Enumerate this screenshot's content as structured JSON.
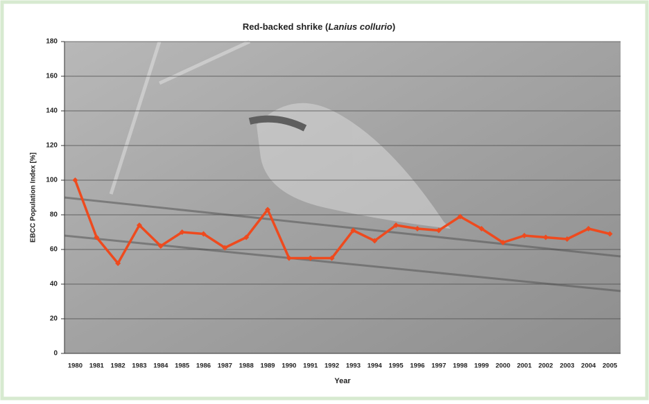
{
  "chart_data": {
    "type": "line",
    "title_parts": [
      "Red-backed shrike (",
      "Lanius collurio",
      ")"
    ],
    "x_label": "Year",
    "y_label": "EBCC Population Index [%]",
    "categories": [
      "1980",
      "1981",
      "1982",
      "1983",
      "1984",
      "1985",
      "1986",
      "1987",
      "1988",
      "1989",
      "1990",
      "1991",
      "1992",
      "1993",
      "1994",
      "1995",
      "1996",
      "1997",
      "1998",
      "1999",
      "2000",
      "2001",
      "2002",
      "2003",
      "2004",
      "2005"
    ],
    "series": [
      {
        "color": "#ee4a1e",
        "values": [
          100,
          67,
          52,
          74,
          62,
          70,
          69,
          61,
          67,
          83,
          55,
          55,
          55,
          71,
          65,
          74,
          72,
          71,
          79,
          72,
          64,
          68,
          67,
          66,
          72,
          69
        ]
      }
    ],
    "ylim": [
      0,
      180
    ],
    "yticks": [
      0,
      20,
      40,
      60,
      80,
      100,
      120,
      140,
      160,
      180
    ],
    "grid": true
  }
}
